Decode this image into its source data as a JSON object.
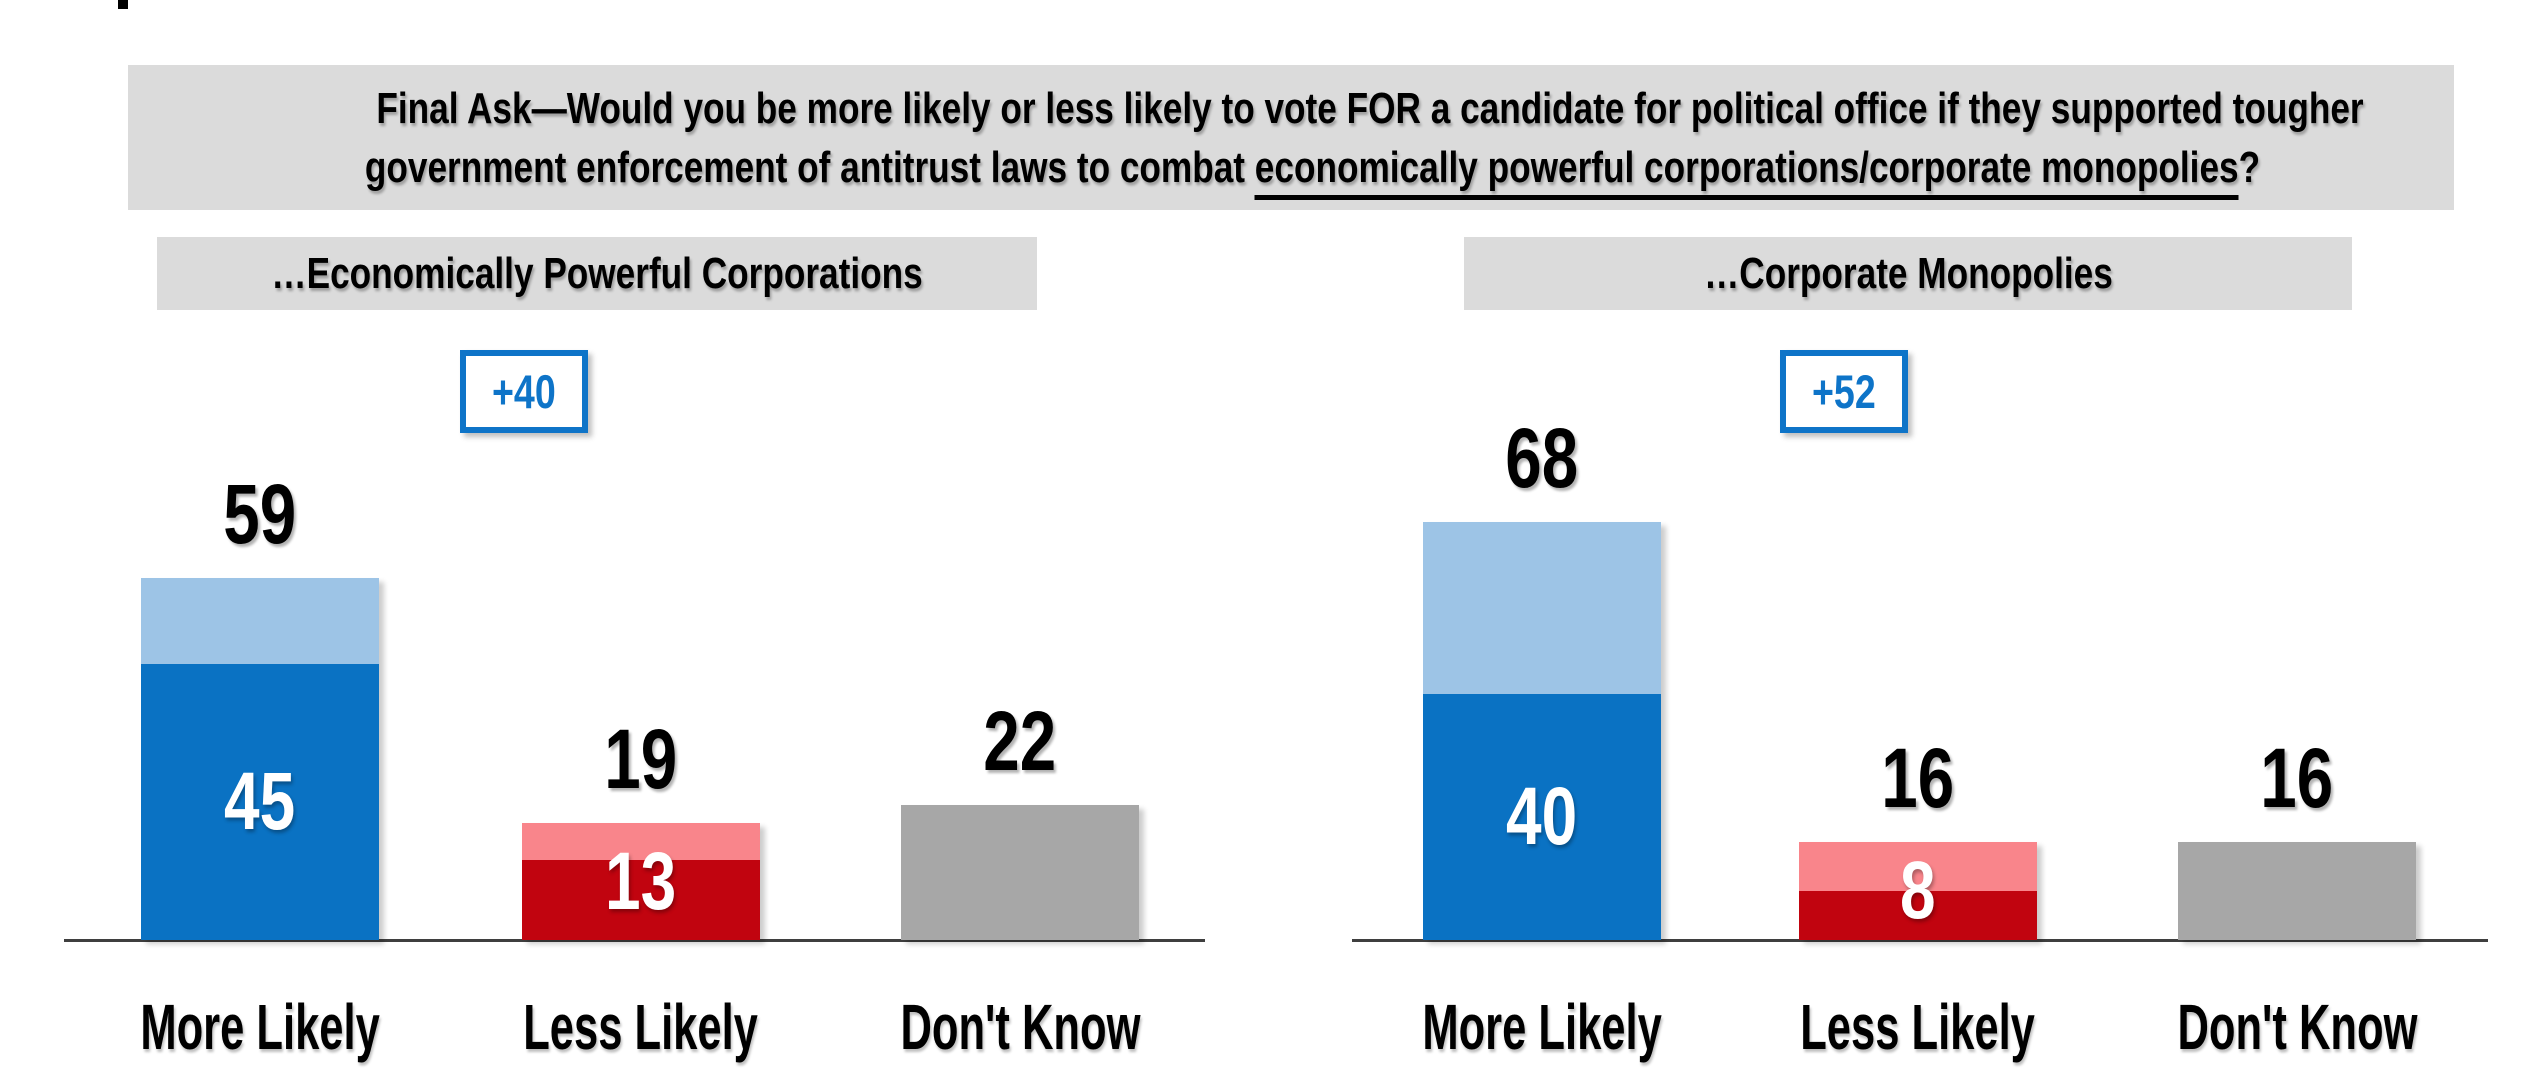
{
  "banner": {
    "line1": "Final Ask—Would you be more likely or less likely to vote FOR a candidate for political office if they supported tougher",
    "line2_prefix": "government enforcement of antitrust laws to combat ",
    "line2_underline": "economically powerful corporations/corporate monopolies",
    "line2_suffix": "?"
  },
  "colors": {
    "banner_bg": "#dbdbdb",
    "header_bg": "#dbdbdb",
    "blue_dark": "#0a72c3",
    "blue_light": "#9dc4e6",
    "red_dark": "#c1040f",
    "red_light": "#f9858b",
    "gray_bar": "#a7a7a7",
    "badge_blue": "#0e74c8",
    "axis_line": "#3f3f3f",
    "value_text_white": "#ffffff",
    "text_black": "#000000"
  },
  "chart_data": [
    {
      "type": "bar",
      "variant": "stacked",
      "title": "…Economically Powerful Corporations",
      "net_score_badge": "+40",
      "categories": [
        "More Likely",
        "Less Likely",
        "Don't Know"
      ],
      "totals": [
        59,
        19,
        22
      ],
      "series": [
        {
          "name": "strong-dark-segment",
          "values": [
            45,
            13,
            null
          ]
        },
        {
          "name": "light-remainder-to-total",
          "values": [
            14,
            6,
            null
          ]
        }
      ],
      "bar_palettes": [
        "blue",
        "red",
        "gray"
      ],
      "y_axis_visible": false,
      "grid": false,
      "legend": "none"
    },
    {
      "type": "bar",
      "variant": "stacked",
      "title": "…Corporate Monopolies",
      "net_score_badge": "+52",
      "categories": [
        "More Likely",
        "Less Likely",
        "Don't Know"
      ],
      "totals": [
        68,
        16,
        16
      ],
      "series": [
        {
          "name": "strong-dark-segment",
          "values": [
            40,
            8,
            null
          ]
        },
        {
          "name": "light-remainder-to-total",
          "values": [
            28,
            8,
            null
          ]
        }
      ],
      "bar_palettes": [
        "blue",
        "red",
        "gray"
      ],
      "y_axis_visible": false,
      "grid": false,
      "legend": "none"
    }
  ]
}
